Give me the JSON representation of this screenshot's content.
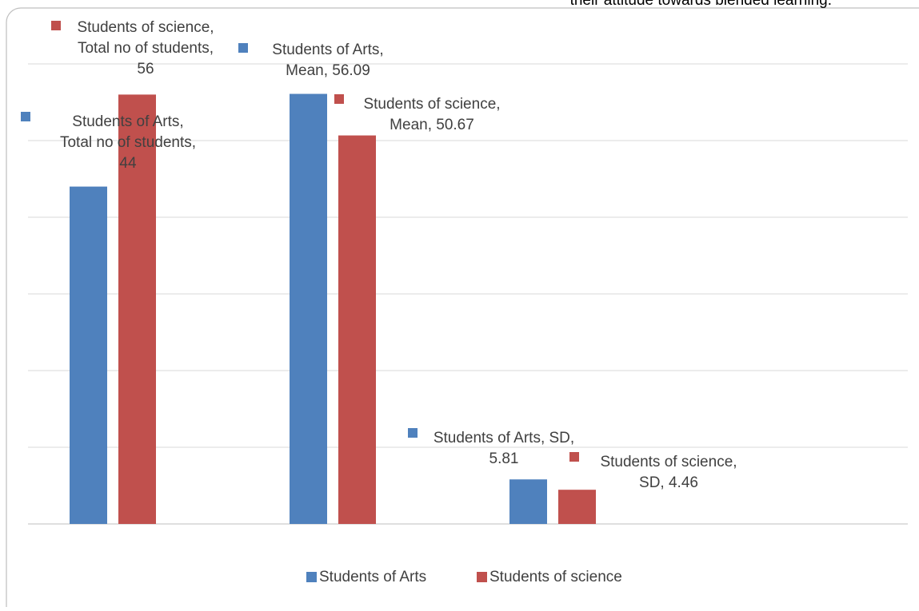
{
  "header": {
    "caption_fragment": "their attitude towards blended learning."
  },
  "chart_data": {
    "type": "bar",
    "categories": [
      "Total no of students",
      "Mean",
      "SD"
    ],
    "series": [
      {
        "name": "Students of Arts",
        "color": "#4F81BD",
        "values": [
          44,
          56.09,
          5.81
        ]
      },
      {
        "name": "Students of science",
        "color": "#C0504D",
        "values": [
          56,
          50.67,
          4.46
        ]
      }
    ],
    "ylim": [
      0,
      60
    ],
    "grid": true,
    "legend_position": "bottom",
    "data_labels": [
      {
        "series": 0,
        "category": 0,
        "lines": [
          "Students of Arts,",
          "Total no of students,",
          "44"
        ]
      },
      {
        "series": 1,
        "category": 0,
        "lines": [
          "Students of science,",
          "Total no of students,",
          "56"
        ]
      },
      {
        "series": 0,
        "category": 1,
        "lines": [
          "Students of Arts,",
          "Mean, 56.09"
        ]
      },
      {
        "series": 1,
        "category": 1,
        "lines": [
          "Students of science,",
          "Mean, 50.67"
        ]
      },
      {
        "series": 0,
        "category": 2,
        "lines": [
          "Students of Arts, SD,",
          "5.81"
        ]
      },
      {
        "series": 1,
        "category": 2,
        "lines": [
          "Students of science,",
          "SD, 4.46"
        ]
      }
    ]
  }
}
